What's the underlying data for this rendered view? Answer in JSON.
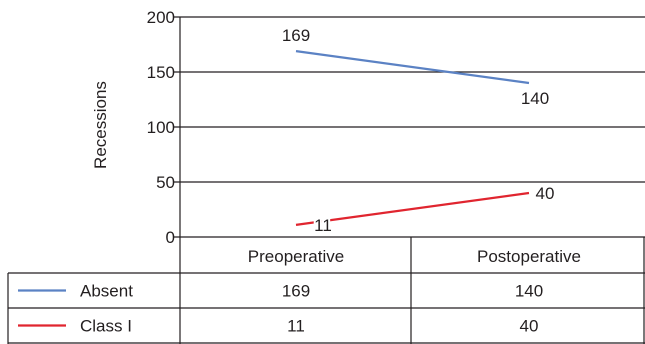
{
  "chart_data": {
    "type": "line",
    "title": "",
    "xlabel": "",
    "ylabel": "Recessions",
    "ylim": [
      0,
      200
    ],
    "yticks": [
      0,
      50,
      100,
      150,
      200
    ],
    "grid": true,
    "categories": [
      "Preoperative",
      "Postoperative"
    ],
    "series": [
      {
        "name": "Absent",
        "values": [
          169,
          140
        ],
        "color": "#5b82c4"
      },
      {
        "name": "Class I",
        "values": [
          11,
          40
        ],
        "color": "#e0252f"
      }
    ],
    "data_table": {
      "rows": [
        {
          "label": "Absent",
          "values": [
            "169",
            "140"
          ]
        },
        {
          "label": "Class I",
          "values": [
            "11",
            "40"
          ]
        }
      ]
    }
  }
}
